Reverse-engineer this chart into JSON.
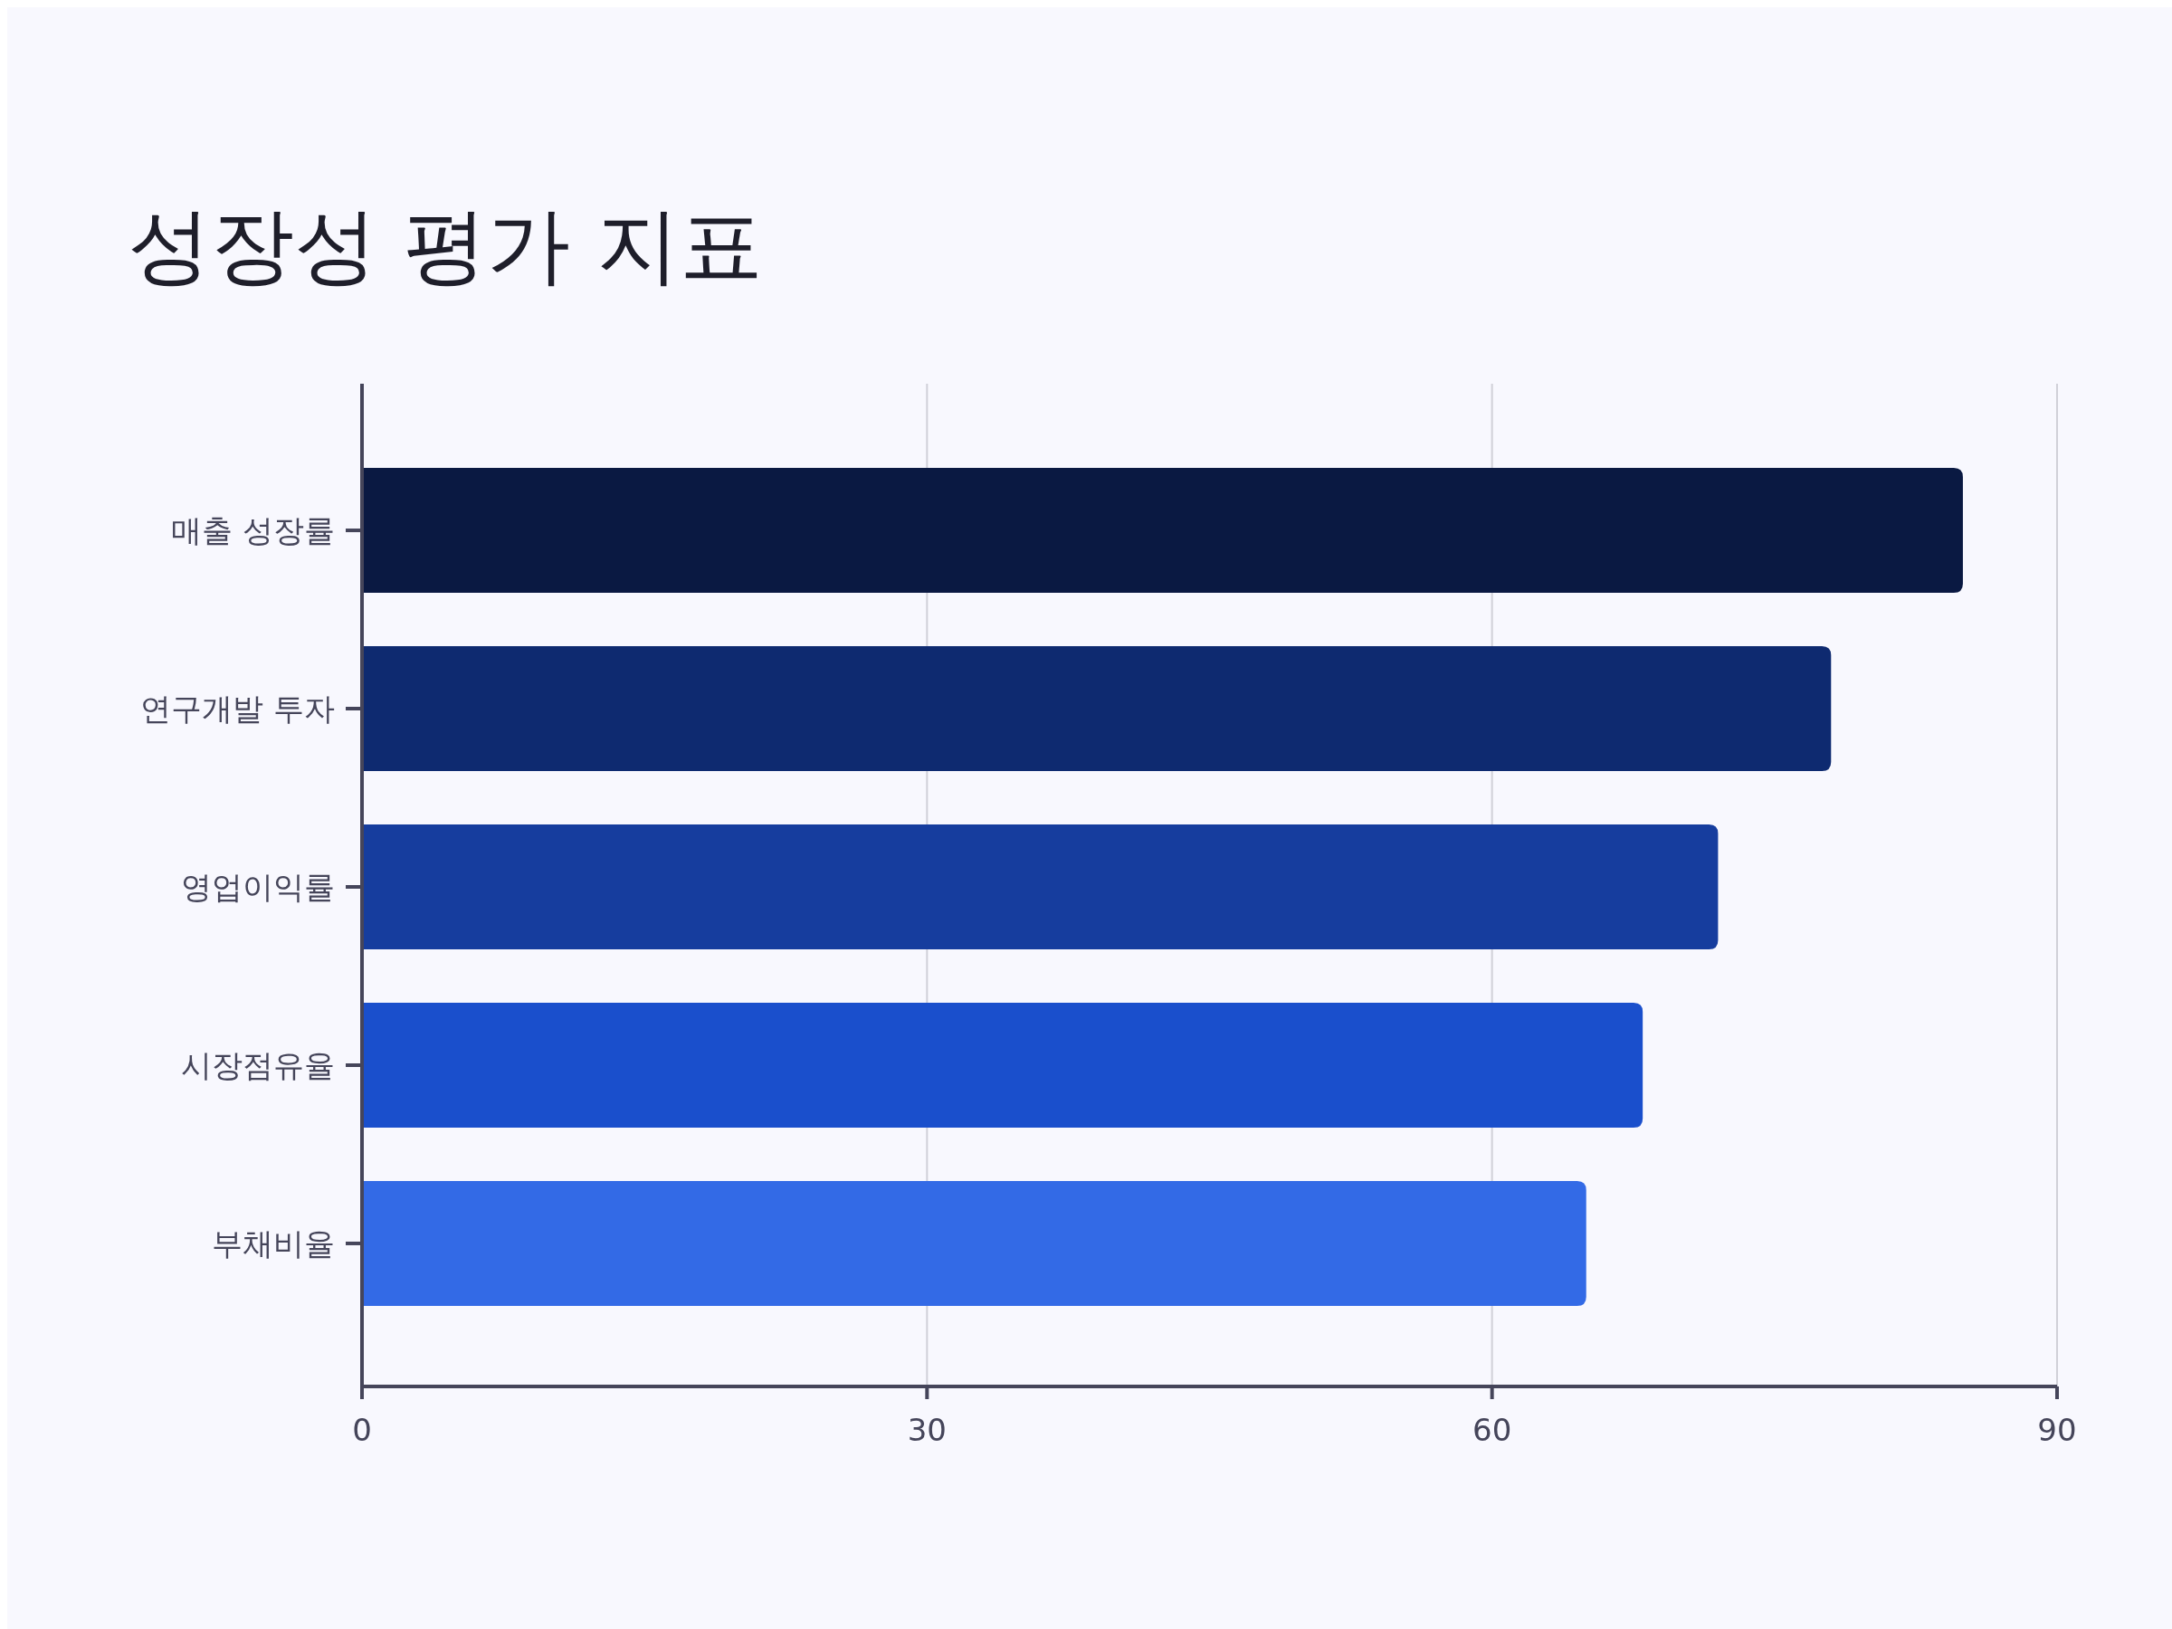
{
  "chart_data": {
    "type": "bar",
    "title": "성장성 평가 지표",
    "orientation": "horizontal",
    "categories": [
      "매출 성장률",
      "연구개발 투자",
      "영업이익률",
      "시장점유율",
      "부채비율"
    ],
    "values": [
      85,
      78,
      72,
      68,
      65
    ],
    "colors": [
      "#0a1942",
      "#0e2a70",
      "#163d9e",
      "#1a4fcc",
      "#336ae6"
    ],
    "xlim": [
      0,
      90
    ],
    "xticks": [
      0,
      30,
      60,
      90
    ],
    "grid": "x"
  }
}
